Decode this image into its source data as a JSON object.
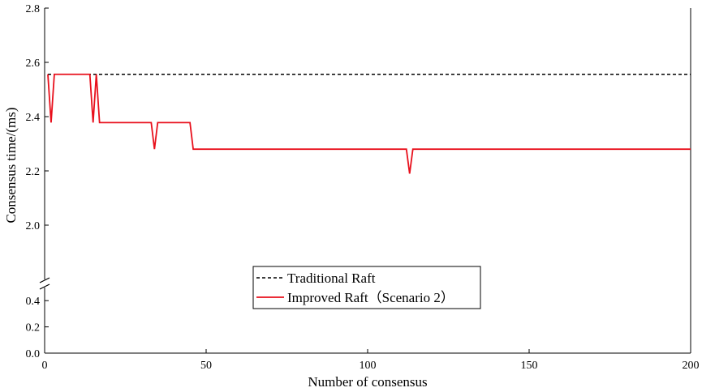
{
  "chart_data": {
    "type": "line",
    "xlabel": "Number of consensus",
    "ylabel": "Consensus time/(ms)",
    "xlim": [
      0,
      200
    ],
    "xticks": [
      0,
      50,
      100,
      150,
      200
    ],
    "y_axis_break": true,
    "ylim_lower": [
      0,
      0.5
    ],
    "yticks_lower": [
      "0.0",
      "0.2",
      "0.4"
    ],
    "ylim_upper": [
      1.8,
      2.8
    ],
    "yticks_upper": [
      "2.0",
      "2.2",
      "2.4",
      "2.6",
      "2.8"
    ],
    "grid": false,
    "legend_position": "bottom-center",
    "series": [
      {
        "name": "Traditional Raft",
        "color": "#000000",
        "style": "dashed",
        "x": [
          1,
          200
        ],
        "y": [
          2.556,
          2.556
        ]
      },
      {
        "name": "Improved Raft（Scenario 2）",
        "color": "#e8101c",
        "style": "solid",
        "x": [
          1,
          2,
          3,
          4,
          14,
          15,
          16,
          17,
          33,
          34,
          35,
          45,
          46,
          112,
          113,
          114,
          200
        ],
        "y": [
          2.556,
          2.378,
          2.556,
          2.556,
          2.556,
          2.378,
          2.556,
          2.378,
          2.378,
          2.28,
          2.378,
          2.378,
          2.28,
          2.28,
          2.19,
          2.28,
          2.28
        ]
      }
    ]
  }
}
